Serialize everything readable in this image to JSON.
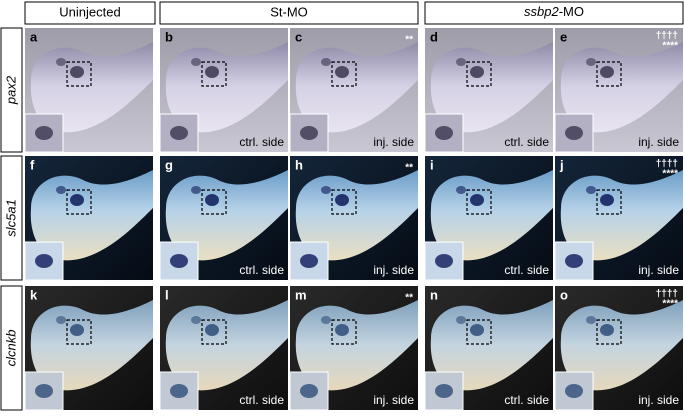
{
  "headers": [
    {
      "text": "Uninjected"
    },
    {
      "text": "St-MO"
    },
    {
      "italic": "ssbp2",
      "text": "-MO"
    }
  ],
  "rows": [
    {
      "gene": "pax2",
      "panels": [
        {
          "letter": "a"
        },
        {
          "letter": "b",
          "side": "ctrl. side"
        },
        {
          "letter": "c",
          "side": "inj. side",
          "significance": "**"
        },
        {
          "letter": "d",
          "side": "ctrl. side"
        },
        {
          "letter": "e",
          "side": "inj. side",
          "dagger": "††††",
          "significance": "****"
        }
      ]
    },
    {
      "gene": "slc5a1",
      "panels": [
        {
          "letter": "f"
        },
        {
          "letter": "g",
          "side": "ctrl. side"
        },
        {
          "letter": "h",
          "side": "inj. side",
          "significance": "**"
        },
        {
          "letter": "i",
          "side": "ctrl. side"
        },
        {
          "letter": "j",
          "side": "inj. side",
          "dagger": "††††",
          "significance": "****"
        }
      ]
    },
    {
      "gene": "clcnkb",
      "panels": [
        {
          "letter": "k"
        },
        {
          "letter": "l",
          "side": "ctrl. side"
        },
        {
          "letter": "m",
          "side": "inj. side",
          "significance": "**"
        },
        {
          "letter": "n",
          "side": "ctrl. side"
        },
        {
          "letter": "o",
          "side": "inj. side",
          "dagger": "††††",
          "significance": "****"
        }
      ]
    }
  ]
}
